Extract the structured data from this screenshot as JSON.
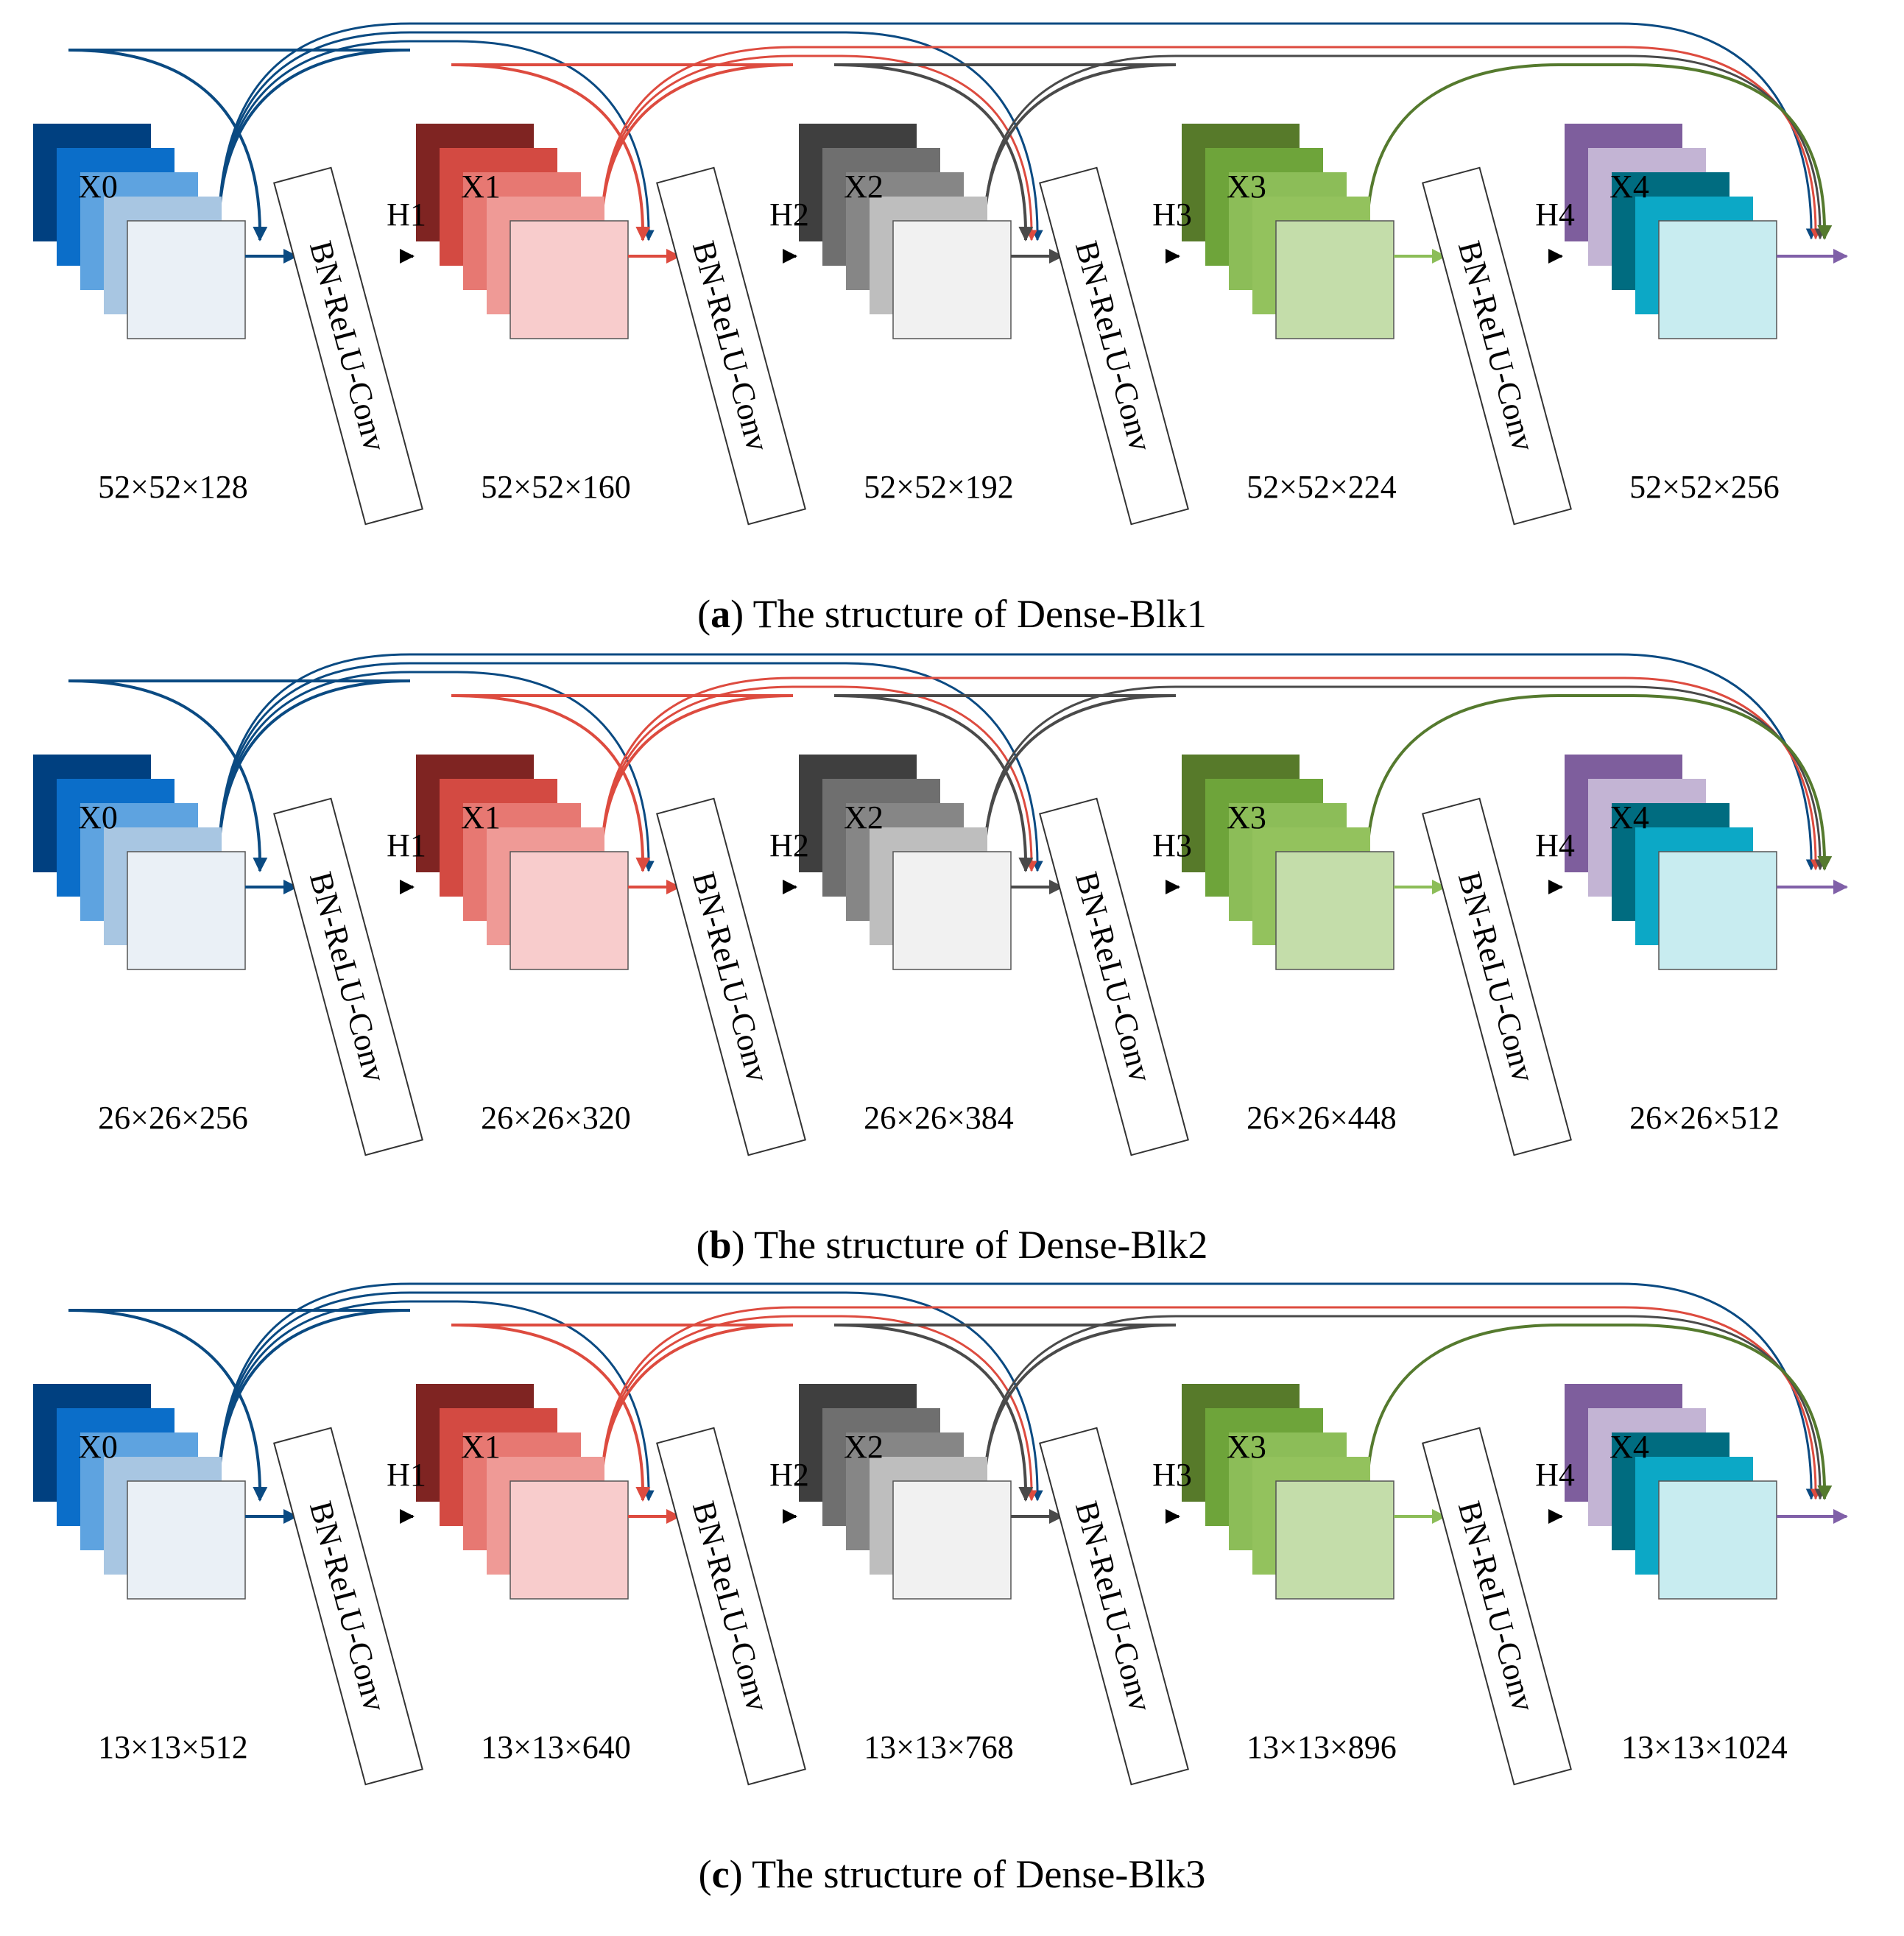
{
  "colors": {
    "arrow_black": "#000000",
    "box_border": "#555555",
    "x0": [
      "#004080",
      "#0b6ec9",
      "#5ea3e0",
      "#a8c6e2",
      "#eaf0f6"
    ],
    "x1": [
      "#7f2422",
      "#d34a42",
      "#e77872",
      "#ef9a96",
      "#f8cccc"
    ],
    "x2": [
      "#3f3f3f",
      "#6f6f6f",
      "#868686",
      "#bebebe",
      "#f1f1f1"
    ],
    "x3": [
      "#577a2a",
      "#6ea43a",
      "#8cbd58",
      "#93c25d",
      "#c4ddaa"
    ],
    "x4": [
      "#7e5e9d",
      "#c3b4d4",
      "#006c80",
      "#0ca8c6",
      "#c8ecf0"
    ],
    "skip": {
      "x0": "#0a4a82",
      "x1": "#dd4b3f",
      "x2": "#4a4a4a",
      "x3": "#557a2e",
      "out": "#8060a8"
    }
  },
  "block_labels": [
    "X0",
    "X1",
    "X2",
    "X3",
    "X4"
  ],
  "layer_labels": [
    "H1",
    "H2",
    "H3",
    "H4"
  ],
  "op_label": "BN-ReLU-Conv",
  "panels": [
    {
      "id": "a",
      "caption_letter": "a",
      "caption_text": " The structure of Dense-Blk1",
      "dims": [
        "52×52×128",
        "52×52×160",
        "52×52×192",
        "52×52×224",
        "52×52×256"
      ]
    },
    {
      "id": "b",
      "caption_letter": "b",
      "caption_text": " The structure of Dense-Blk2",
      "dims": [
        "26×26×256",
        "26×26×320",
        "26×26×384",
        "26×26×448",
        "26×26×512"
      ]
    },
    {
      "id": "c",
      "caption_letter": "c",
      "caption_text": " The structure of Dense-Blk3",
      "dims": [
        "13×13×512",
        "13×13×640",
        "13×13×768",
        "13×13×896",
        "13×13×1024"
      ]
    }
  ]
}
